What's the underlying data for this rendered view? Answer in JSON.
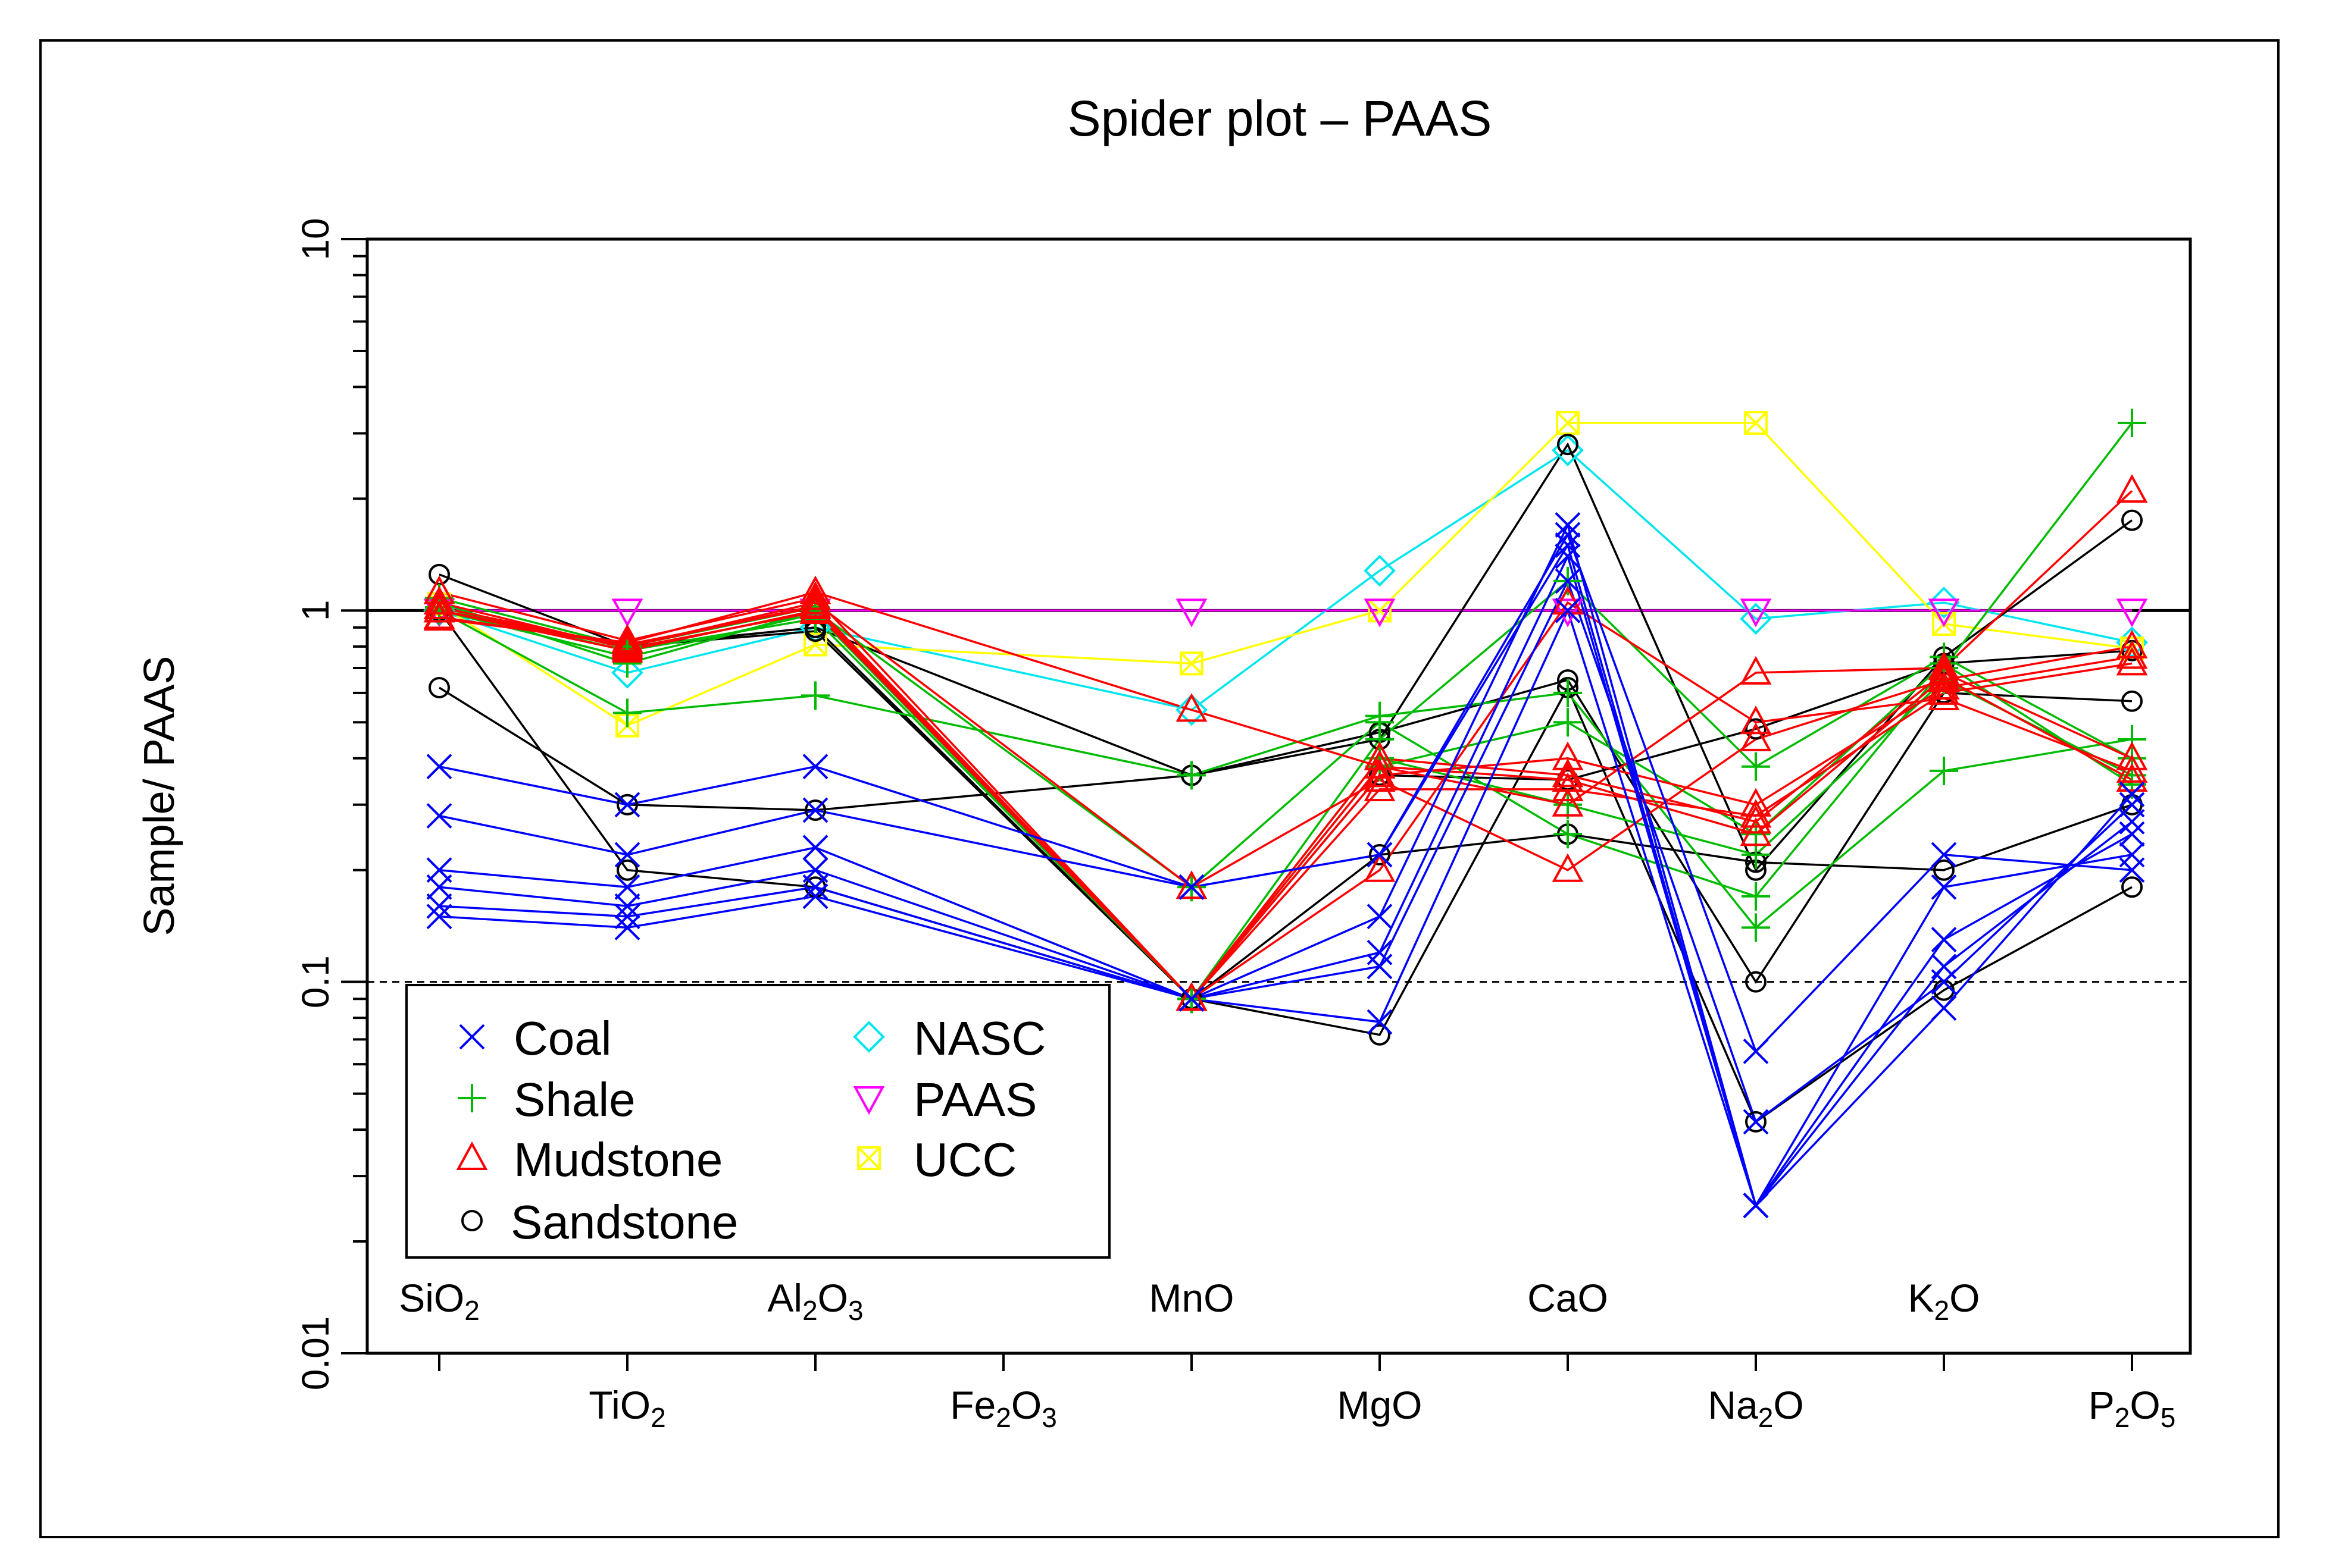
{
  "chart_data": {
    "type": "line",
    "title": "Spider plot – PAAS",
    "ylabel": "Sample/ PAAS",
    "xlabel": "",
    "yscale": "log",
    "ylim": [
      0.01,
      10
    ],
    "y_ticks": [
      {
        "value": 0.01,
        "label": "0.01"
      },
      {
        "value": 0.1,
        "label": "0.1"
      },
      {
        "value": 1,
        "label": "1"
      },
      {
        "value": 10,
        "label": "10"
      }
    ],
    "reference_lines": [
      {
        "value": 1,
        "style": "solid"
      },
      {
        "value": 0.1,
        "style": "dashed"
      }
    ],
    "categories": [
      {
        "base": "SiO",
        "sub": "2",
        "tail": "",
        "sub2": "",
        "row": "top"
      },
      {
        "base": "TiO",
        "sub": "2",
        "tail": "",
        "sub2": "",
        "row": "bottom"
      },
      {
        "base": "Al",
        "sub": "2",
        "tail": "O",
        "sub2": "3",
        "row": "top"
      },
      {
        "base": "Fe",
        "sub": "2",
        "tail": "O",
        "sub2": "3",
        "row": "bottom"
      },
      {
        "base": "MnO",
        "sub": "",
        "tail": "",
        "sub2": "",
        "row": "top"
      },
      {
        "base": "MgO",
        "sub": "",
        "tail": "",
        "sub2": "",
        "row": "bottom"
      },
      {
        "base": "CaO",
        "sub": "",
        "tail": "",
        "sub2": "",
        "row": "top"
      },
      {
        "base": "Na",
        "sub": "2",
        "tail": "O",
        "sub2": "",
        "row": "bottom"
      },
      {
        "base": "K",
        "sub": "2",
        "tail": "O",
        "sub2": "",
        "row": "top"
      },
      {
        "base": "P",
        "sub": "2",
        "tail": "O",
        "sub2": "5",
        "row": "bottom"
      }
    ],
    "legend": {
      "position": "bottom-left",
      "entries": [
        {
          "label": "Coal",
          "group": "coal"
        },
        {
          "label": "Shale",
          "group": "shale"
        },
        {
          "label": "Mudstone",
          "group": "mudstone"
        },
        {
          "label": "Sandstone",
          "group": "sandstone"
        },
        {
          "label": "NASC",
          "group": "nasc"
        },
        {
          "label": "PAAS",
          "group": "paas"
        },
        {
          "label": "UCC",
          "group": "ucc"
        }
      ]
    },
    "groups": {
      "coal": {
        "color": "#0000ff",
        "marker": "x"
      },
      "shale": {
        "color": "#00bb00",
        "marker": "plus"
      },
      "mudstone": {
        "color": "#ff0000",
        "marker": "triangle"
      },
      "sandstone": {
        "color": "#000000",
        "marker": "circle"
      },
      "nasc": {
        "color": "#00e5ee",
        "marker": "diamond"
      },
      "paas": {
        "color": "#ff00ff",
        "marker": "triangle-down"
      },
      "ucc": {
        "color": "#ffff00",
        "marker": "square-x"
      }
    },
    "series": [
      {
        "name": "Coal 1",
        "group": "coal",
        "values": [
          0.38,
          0.3,
          0.38,
          null,
          0.18,
          0.22,
          1.6,
          0.065,
          0.22,
          0.2
        ]
      },
      {
        "name": "Coal 2",
        "group": "coal",
        "values": [
          0.28,
          0.22,
          0.29,
          null,
          0.18,
          0.22,
          1.5,
          0.025,
          0.18,
          0.22
        ]
      },
      {
        "name": "Coal 3",
        "group": "coal",
        "values": [
          0.2,
          0.18,
          0.23,
          null,
          0.09,
          0.15,
          1.7,
          0.025,
          0.13,
          0.25
        ]
      },
      {
        "name": "Coal 4",
        "group": "coal",
        "values": [
          0.18,
          0.16,
          0.2,
          null,
          0.09,
          0.12,
          1.4,
          0.025,
          0.11,
          0.27
        ]
      },
      {
        "name": "Coal 5",
        "group": "coal",
        "values": [
          0.16,
          0.15,
          0.18,
          null,
          0.09,
          0.11,
          1.2,
          0.042,
          0.1,
          0.3
        ]
      },
      {
        "name": "Coal 6",
        "group": "coal",
        "values": [
          0.15,
          0.14,
          0.17,
          null,
          0.09,
          0.078,
          1.0,
          0.025,
          0.085,
          0.32
        ]
      },
      {
        "name": "Shale 1",
        "group": "shale",
        "values": [
          1.0,
          0.53,
          0.59,
          null,
          0.36,
          0.52,
          0.6,
          0.14,
          0.37,
          0.45
        ]
      },
      {
        "name": "Shale 2",
        "group": "shale",
        "values": [
          1.05,
          0.72,
          1.0,
          null,
          0.18,
          0.5,
          0.25,
          0.17,
          0.7,
          3.2
        ]
      },
      {
        "name": "Shale 3",
        "group": "shale",
        "values": [
          1.02,
          0.78,
          0.95,
          null,
          0.09,
          0.45,
          1.2,
          0.38,
          0.75,
          0.4
        ]
      },
      {
        "name": "Shale 4",
        "group": "shale",
        "values": [
          1.08,
          0.8,
          1.02,
          null,
          0.09,
          0.4,
          0.3,
          0.22,
          0.65,
          0.36
        ]
      },
      {
        "name": "Shale 5",
        "group": "shale",
        "values": [
          1.0,
          0.75,
          0.98,
          null,
          0.09,
          0.38,
          0.5,
          0.25,
          0.72,
          0.34
        ]
      },
      {
        "name": "Mudstone 1",
        "group": "mudstone",
        "values": [
          0.95,
          0.82,
          1.12,
          null,
          0.54,
          0.38,
          0.3,
          0.68,
          0.7,
          2.1
        ]
      },
      {
        "name": "Mudstone 2",
        "group": "mudstone",
        "values": [
          1.0,
          0.8,
          1.05,
          null,
          0.18,
          0.35,
          0.2,
          0.45,
          0.65,
          0.8
        ]
      },
      {
        "name": "Mudstone 3",
        "group": "mudstone",
        "values": [
          1.12,
          0.83,
          1.08,
          null,
          0.09,
          0.36,
          0.4,
          0.3,
          0.62,
          0.75
        ]
      },
      {
        "name": "Mudstone 4",
        "group": "mudstone",
        "values": [
          1.0,
          0.78,
          1.0,
          null,
          0.09,
          0.33,
          0.33,
          0.28,
          0.6,
          0.72
        ]
      },
      {
        "name": "Mudstone 5",
        "group": "mudstone",
        "values": [
          0.96,
          0.81,
          1.02,
          null,
          0.09,
          0.4,
          0.36,
          0.27,
          0.68,
          0.4
        ]
      },
      {
        "name": "Mudstone 6",
        "group": "mudstone",
        "values": [
          1.05,
          0.79,
          0.99,
          null,
          0.09,
          0.2,
          1.05,
          0.5,
          0.58,
          0.37
        ]
      },
      {
        "name": "Mudstone 7",
        "group": "mudstone",
        "values": [
          1.02,
          0.8,
          1.03,
          null,
          0.09,
          0.38,
          0.35,
          0.25,
          0.66,
          0.35
        ]
      },
      {
        "name": "Sandstone 1",
        "group": "sandstone",
        "values": [
          1.25,
          0.8,
          0.9,
          null,
          0.36,
          0.45,
          2.8,
          0.2,
          0.75,
          1.75
        ]
      },
      {
        "name": "Sandstone 2",
        "group": "sandstone",
        "values": [
          0.62,
          0.3,
          0.29,
          null,
          0.36,
          0.47,
          0.65,
          0.1,
          0.6,
          0.57
        ]
      },
      {
        "name": "Sandstone 3",
        "group": "sandstone",
        "values": [
          1.0,
          0.2,
          0.18,
          null,
          0.09,
          0.072,
          0.62,
          0.042,
          0.095,
          0.18
        ]
      },
      {
        "name": "Sandstone 4",
        "group": "sandstone",
        "values": [
          1.0,
          0.8,
          0.9,
          null,
          0.09,
          0.22,
          0.25,
          0.21,
          0.2,
          0.3
        ]
      },
      {
        "name": "Sandstone 5",
        "group": "sandstone",
        "values": [
          1.0,
          0.8,
          0.88,
          null,
          0.09,
          0.36,
          0.35,
          0.48,
          0.72,
          0.78
        ]
      },
      {
        "name": "NASC",
        "group": "nasc",
        "values": [
          1.0,
          0.68,
          0.9,
          null,
          0.54,
          1.28,
          2.7,
          0.95,
          1.05,
          0.82
        ]
      },
      {
        "name": "PAAS",
        "group": "paas",
        "values": [
          1.0,
          1.0,
          1.0,
          null,
          1.0,
          1.0,
          1.0,
          1.0,
          1.0,
          1.0
        ]
      },
      {
        "name": "UCC",
        "group": "ucc",
        "values": [
          1.04,
          0.49,
          0.81,
          null,
          0.72,
          1.0,
          3.2,
          3.2,
          0.92,
          0.79
        ]
      }
    ]
  }
}
